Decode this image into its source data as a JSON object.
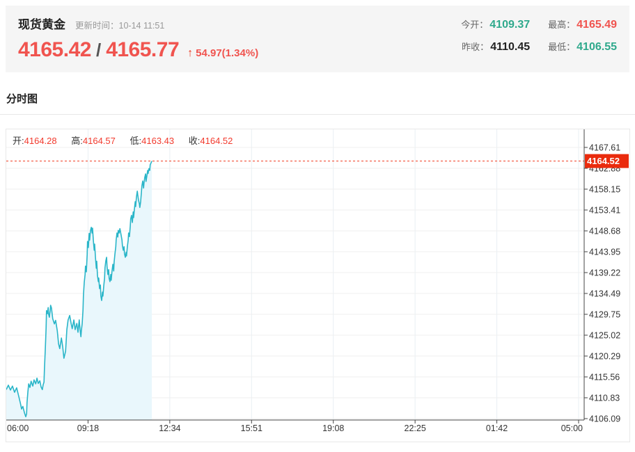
{
  "header": {
    "title": "现货黄金",
    "update_label": "更新时间：",
    "update_time": "10-14 11:51",
    "bid": "4165.42",
    "separator": "/",
    "ask": "4165.77",
    "arrow": "↑",
    "change": "54.97(1.34%)",
    "stats": [
      {
        "label": "今开：",
        "value": "4109.37",
        "color": "green"
      },
      {
        "label": "最高：",
        "value": "4165.49",
        "color": "red"
      },
      {
        "label": "昨收：",
        "value": "4110.45",
        "color": "dark"
      },
      {
        "label": "最低：",
        "value": "4106.55",
        "color": "green"
      }
    ]
  },
  "section": {
    "title": "分时图"
  },
  "legend": {
    "open_label": "开:",
    "open": "4164.28",
    "high_label": "高:",
    "high": "4164.57",
    "low_label": "低:",
    "low": "4163.43",
    "close_label": "收:",
    "close": "4164.52"
  },
  "colors": {
    "accent_red": "#f0544f",
    "green": "#2fa98c",
    "ohlc_red": "#f23a2d",
    "tag_red": "#ea2b0d",
    "dotted_line": "#f0391f",
    "series_line": "#29b5c8",
    "series_fill": "#e9f7fc",
    "grid_h": "#efefef",
    "grid_v": "#e9eff3",
    "axis": "#444"
  },
  "chart_data": {
    "type": "area",
    "title": "分时图",
    "legend_position": "top-left",
    "grid": true,
    "current_price": 4164.52,
    "current_price_label": "4164.52",
    "ohlc": {
      "open": 4164.28,
      "high": 4164.57,
      "low": 4163.43,
      "close": 4164.52
    },
    "x_axis": {
      "labels": [
        "06:00",
        "09:18",
        "12:34",
        "15:51",
        "19:08",
        "22:25",
        "01:42",
        "05:00"
      ],
      "start": "06:00",
      "end": "05:00",
      "total_minutes": 1380
    },
    "y_axis": {
      "labels": [
        "4167.61",
        "4162.88",
        "4158.15",
        "4153.41",
        "4148.68",
        "4143.95",
        "4139.22",
        "4134.49",
        "4129.75",
        "4125.02",
        "4120.29",
        "4115.56",
        "4110.83",
        "4106.09"
      ],
      "top_value": 4167.61,
      "step": 4.73,
      "min": 4106.09
    },
    "series": [
      {
        "name": "price",
        "points_format": [
          "minutes_since_06:00",
          "price"
        ],
        "points": [
          [
            0,
            4112.7
          ],
          [
            5,
            4113.7
          ],
          [
            10,
            4112.6
          ],
          [
            15,
            4113.5
          ],
          [
            20,
            4112.1
          ],
          [
            25,
            4113.1
          ],
          [
            30,
            4111.2
          ],
          [
            34,
            4109.6
          ],
          [
            37,
            4108.3
          ],
          [
            40,
            4108.9
          ],
          [
            44,
            4107.4
          ],
          [
            47,
            4106.55
          ],
          [
            49,
            4107.2
          ],
          [
            50,
            4109.7
          ],
          [
            52,
            4112.1
          ],
          [
            54,
            4114.0
          ],
          [
            57,
            4113.2
          ],
          [
            60,
            4114.6
          ],
          [
            64,
            4113.5
          ],
          [
            67,
            4114.9
          ],
          [
            71,
            4114.0
          ],
          [
            74,
            4115.3
          ],
          [
            77,
            4114.1
          ],
          [
            81,
            4114.7
          ],
          [
            84,
            4113.3
          ],
          [
            87,
            4112.7
          ],
          [
            89,
            4113.8
          ],
          [
            91,
            4114.4
          ],
          [
            92,
            4117.3
          ],
          [
            94,
            4121.6
          ],
          [
            96,
            4126.6
          ],
          [
            97,
            4130.6
          ],
          [
            99,
            4129.9
          ],
          [
            101,
            4131.3
          ],
          [
            102,
            4129.8
          ],
          [
            104,
            4129.1
          ],
          [
            106,
            4130.7
          ],
          [
            107,
            4131.8
          ],
          [
            109,
            4131.2
          ],
          [
            111,
            4129.6
          ],
          [
            112,
            4128.8
          ],
          [
            116,
            4127.6
          ],
          [
            119,
            4128.4
          ],
          [
            123,
            4126.0
          ],
          [
            126,
            4123.1
          ],
          [
            129,
            4122.0
          ],
          [
            133,
            4124.4
          ],
          [
            136,
            4122.5
          ],
          [
            139,
            4119.8
          ],
          [
            143,
            4121.4
          ],
          [
            146,
            4126.3
          ],
          [
            149,
            4128.5
          ],
          [
            153,
            4129.5
          ],
          [
            156,
            4127.9
          ],
          [
            159,
            4126.5
          ],
          [
            163,
            4128.5
          ],
          [
            166,
            4126.3
          ],
          [
            170,
            4127.7
          ],
          [
            173,
            4125.7
          ],
          [
            176,
            4128.5
          ],
          [
            178,
            4126.3
          ],
          [
            180,
            4124.7
          ],
          [
            181,
            4126.0
          ],
          [
            183,
            4127.6
          ],
          [
            185,
            4130.7
          ],
          [
            186,
            4134.0
          ],
          [
            188,
            4137.0
          ],
          [
            190,
            4138.8
          ],
          [
            191,
            4140.7
          ],
          [
            193,
            4139.4
          ],
          [
            195,
            4143.3
          ],
          [
            196,
            4146.3
          ],
          [
            198,
            4144.9
          ],
          [
            200,
            4148.1
          ],
          [
            201,
            4146.6
          ],
          [
            203,
            4148.7
          ],
          [
            205,
            4149.5
          ],
          [
            207,
            4148.2
          ],
          [
            208,
            4149.3
          ],
          [
            210,
            4146.5
          ],
          [
            212,
            4144.3
          ],
          [
            213,
            4145.7
          ],
          [
            215,
            4142.7
          ],
          [
            217,
            4140.2
          ],
          [
            218,
            4141.8
          ],
          [
            220,
            4138.6
          ],
          [
            222,
            4137.2
          ],
          [
            223,
            4138.0
          ],
          [
            225,
            4135.6
          ],
          [
            227,
            4136.4
          ],
          [
            228,
            4134.0
          ],
          [
            230,
            4132.9
          ],
          [
            232,
            4134.8
          ],
          [
            233,
            4133.9
          ],
          [
            235,
            4136.2
          ],
          [
            237,
            4138.0
          ],
          [
            238,
            4140.3
          ],
          [
            240,
            4141.9
          ],
          [
            242,
            4142.7
          ],
          [
            243,
            4140.7
          ],
          [
            245,
            4138.8
          ],
          [
            247,
            4139.9
          ],
          [
            248,
            4138.0
          ],
          [
            250,
            4137.2
          ],
          [
            252,
            4138.8
          ],
          [
            253,
            4137.5
          ],
          [
            255,
            4139.6
          ],
          [
            257,
            4141.1
          ],
          [
            259,
            4139.6
          ],
          [
            260,
            4141.6
          ],
          [
            262,
            4143.5
          ],
          [
            264,
            4145.1
          ],
          [
            265,
            4146.6
          ],
          [
            267,
            4148.2
          ],
          [
            269,
            4147.3
          ],
          [
            270,
            4148.8
          ],
          [
            272,
            4148.2
          ],
          [
            274,
            4149.2
          ],
          [
            275,
            4148.7
          ],
          [
            277,
            4147.7
          ],
          [
            279,
            4146.6
          ],
          [
            280,
            4145.4
          ],
          [
            282,
            4144.3
          ],
          [
            284,
            4145.1
          ],
          [
            285,
            4143.5
          ],
          [
            287,
            4142.7
          ],
          [
            289,
            4143.8
          ],
          [
            290,
            4143.0
          ],
          [
            292,
            4145.1
          ],
          [
            294,
            4146.6
          ],
          [
            295,
            4148.2
          ],
          [
            297,
            4147.4
          ],
          [
            299,
            4149.8
          ],
          [
            300,
            4151.4
          ],
          [
            302,
            4152.2
          ],
          [
            304,
            4150.6
          ],
          [
            306,
            4153.0
          ],
          [
            307,
            4151.7
          ],
          [
            309,
            4153.7
          ],
          [
            311,
            4155.3
          ],
          [
            312,
            4154.2
          ],
          [
            314,
            4156.4
          ],
          [
            316,
            4157.7
          ],
          [
            317,
            4156.9
          ],
          [
            319,
            4155.6
          ],
          [
            321,
            4154.8
          ],
          [
            322,
            4154.0
          ],
          [
            324,
            4155.3
          ],
          [
            326,
            4157.7
          ],
          [
            327,
            4158.9
          ],
          [
            329,
            4160.0
          ],
          [
            331,
            4158.4
          ],
          [
            332,
            4159.5
          ],
          [
            334,
            4160.8
          ],
          [
            336,
            4161.6
          ],
          [
            337,
            4159.9
          ],
          [
            339,
            4161.1
          ],
          [
            341,
            4162.4
          ],
          [
            342,
            4161.7
          ],
          [
            344,
            4162.8
          ],
          [
            346,
            4162.4
          ],
          [
            347,
            4163.7
          ],
          [
            349,
            4164.1
          ],
          [
            351,
            4164.52
          ]
        ]
      }
    ]
  }
}
